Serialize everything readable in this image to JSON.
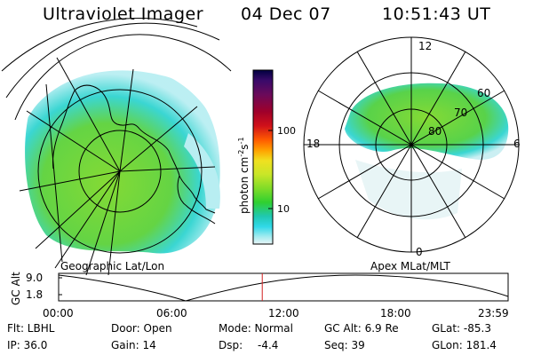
{
  "header": {
    "instrument": "Ultraviolet Imager",
    "date": "04 Dec 07",
    "time": "10:51:43 UT"
  },
  "left_panel": {
    "label": "Geographic Lat/Lon"
  },
  "right_panel": {
    "label": "Apex MLat/MLT",
    "mlt_labels": [
      "12",
      "6",
      "0",
      "18"
    ],
    "lat_labels": [
      "60",
      "70",
      "80"
    ]
  },
  "colorbar": {
    "unit_label": "photon cm-2 s-1",
    "unit_main": "photon cm",
    "unit_sup1": "-2",
    "unit_mid": "s",
    "unit_sup2": "-1",
    "ticks": [
      "100",
      "10"
    ],
    "colors": [
      "#000040",
      "#3a0a6a",
      "#6a0a5a",
      "#a0002a",
      "#d0101a",
      "#ff5a00",
      "#ffa000",
      "#f0e020",
      "#c8e628",
      "#80dc28",
      "#30d030",
      "#20c8b0",
      "#30d8e8",
      "#a8ecf0",
      "#e8f4f6"
    ]
  },
  "altitude_plot": {
    "ylabel": "GC Alt",
    "yticks": [
      "9.0",
      "1.8"
    ],
    "xticks": [
      "00:00",
      "06:00",
      "12:00",
      "18:00",
      "23:59"
    ],
    "current_time_fraction": 0.453
  },
  "info": {
    "row1": {
      "filter": "Flt: LBHL",
      "door": "Door: Open",
      "mode": "Mode: Normal",
      "gc_alt": "GC Alt: 6.9 Re",
      "glat": "GLat: -85.3"
    },
    "row2": {
      "ip": "IP: 36.0",
      "gain": "Gain: 14",
      "dsp_label": "Dsp:",
      "dsp_value": "-4.4",
      "seq": "Seq: 39",
      "glon": "GLon: 181.4"
    }
  }
}
